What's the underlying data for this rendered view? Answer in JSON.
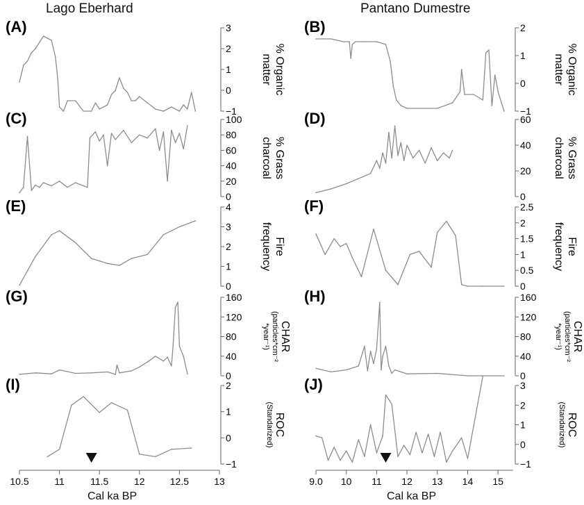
{
  "columns": [
    {
      "title": "Lago Eberhard",
      "xlabel": "Cal ka BP",
      "x_ticks": [
        "10.5",
        "11",
        "11.5",
        "12",
        "12.5",
        "13"
      ],
      "xlim": [
        10.5,
        13
      ]
    },
    {
      "title": "Pantano Dumestre",
      "xlabel": "Cal ka BP",
      "x_ticks": [
        "9.0",
        "10",
        "11",
        "12",
        "13",
        "14",
        "15"
      ],
      "xlim": [
        9.0,
        15.5
      ]
    }
  ],
  "chart_data": [
    {
      "id": "A",
      "type": "line",
      "panel_label": "(A)",
      "ylabel": [
        "% Organic",
        "matter"
      ],
      "yticks": [
        "3",
        "2",
        "1",
        "0",
        "−1"
      ],
      "ylim": [
        -1,
        3
      ],
      "x": [
        10.5,
        10.55,
        10.6,
        10.65,
        10.7,
        10.75,
        10.8,
        10.85,
        10.9,
        10.95,
        10.98,
        11.0,
        11.05,
        11.1,
        11.2,
        11.3,
        11.4,
        11.45,
        11.5,
        11.6,
        11.65,
        11.7,
        11.75,
        11.8,
        11.85,
        11.9,
        11.95,
        12.0,
        12.1,
        12.2,
        12.3,
        12.4,
        12.5,
        12.55,
        12.6,
        12.65,
        12.7
      ],
      "y": [
        0.4,
        1.2,
        1.4,
        1.8,
        2.0,
        2.3,
        2.6,
        2.5,
        2.4,
        1.6,
        0.5,
        -0.8,
        -1.0,
        -0.5,
        -0.5,
        -1.0,
        -1.0,
        -0.6,
        -0.9,
        -0.7,
        -0.2,
        0.0,
        0.6,
        0.1,
        -0.1,
        -0.5,
        -0.5,
        -0.3,
        -0.6,
        -0.9,
        -1.0,
        -0.8,
        -1.0,
        -0.7,
        -0.9,
        -0.1,
        -1.0
      ]
    },
    {
      "id": "B",
      "type": "line",
      "panel_label": "(B)",
      "ylabel": [
        "% Organic",
        "matter"
      ],
      "yticks": [
        "2",
        "1",
        "0",
        "−1"
      ],
      "ylim": [
        -1,
        2
      ],
      "x": [
        9.0,
        9.5,
        9.9,
        10.1,
        10.15,
        10.2,
        10.3,
        10.6,
        11.0,
        11.3,
        11.45,
        11.55,
        11.65,
        11.8,
        12.0,
        12.5,
        13.0,
        13.5,
        13.75,
        13.8,
        13.9,
        14.2,
        14.5,
        14.6,
        14.7,
        14.8,
        14.9,
        15.0,
        15.2
      ],
      "y": [
        1.6,
        1.6,
        1.5,
        1.5,
        0.9,
        1.4,
        1.5,
        1.5,
        1.5,
        1.4,
        0.8,
        -0.1,
        -0.6,
        -0.8,
        -0.9,
        -0.9,
        -0.9,
        -0.7,
        -0.3,
        0.5,
        -0.4,
        -0.4,
        -0.6,
        1.1,
        1.2,
        -0.8,
        0.3,
        -0.3,
        -1.0
      ]
    },
    {
      "id": "C",
      "type": "line",
      "panel_label": "(C)",
      "ylabel": [
        "% Grass",
        "charcoal"
      ],
      "yticks": [
        "100",
        "80",
        "60",
        "40",
        "20",
        "0"
      ],
      "ylim": [
        0,
        100
      ],
      "x": [
        10.5,
        10.55,
        10.6,
        10.65,
        10.7,
        10.75,
        10.8,
        10.9,
        11.0,
        11.1,
        11.2,
        11.3,
        11.35,
        11.38,
        11.45,
        11.5,
        11.55,
        11.6,
        11.65,
        11.7,
        11.8,
        11.9,
        12.0,
        12.1,
        12.2,
        12.25,
        12.3,
        12.35,
        12.4,
        12.45,
        12.5,
        12.55,
        12.6
      ],
      "y": [
        5,
        12,
        78,
        8,
        15,
        12,
        18,
        14,
        20,
        12,
        18,
        14,
        12,
        76,
        84,
        72,
        80,
        40,
        82,
        74,
        86,
        70,
        80,
        76,
        88,
        60,
        84,
        20,
        86,
        70,
        82,
        62,
        92
      ]
    },
    {
      "id": "D",
      "type": "line",
      "panel_label": "(D)",
      "ylabel": [
        "% Grass",
        "charcoal"
      ],
      "yticks": [
        "60",
        "40",
        "20",
        "0"
      ],
      "ylim": [
        0,
        60
      ],
      "x": [
        9.0,
        9.5,
        10.0,
        10.5,
        10.8,
        11.0,
        11.1,
        11.2,
        11.3,
        11.4,
        11.5,
        11.6,
        11.7,
        11.8,
        11.9,
        12.0,
        12.2,
        12.4,
        12.6,
        12.8,
        13.0,
        13.2,
        13.4,
        13.5
      ],
      "y": [
        3,
        6,
        10,
        15,
        18,
        28,
        22,
        34,
        26,
        50,
        30,
        55,
        32,
        42,
        28,
        40,
        30,
        36,
        26,
        38,
        28,
        34,
        30,
        36
      ]
    },
    {
      "id": "E",
      "type": "line",
      "panel_label": "(E)",
      "ylabel": [
        "Fire",
        "frequency"
      ],
      "yticks": [
        "4",
        "3",
        "2",
        "1",
        "0"
      ],
      "ylim": [
        0,
        4
      ],
      "x": [
        10.5,
        10.7,
        10.9,
        11.0,
        11.2,
        11.4,
        11.6,
        11.75,
        11.9,
        12.1,
        12.3,
        12.5,
        12.7
      ],
      "y": [
        0.05,
        1.5,
        2.6,
        2.8,
        2.2,
        1.4,
        1.15,
        1.05,
        1.4,
        1.6,
        2.6,
        3.0,
        3.3
      ]
    },
    {
      "id": "F",
      "type": "line",
      "panel_label": "(F)",
      "ylabel": [
        "Fire",
        "frequency"
      ],
      "yticks": [
        "2.5",
        "2",
        "1.5",
        "1",
        "0.5",
        "0"
      ],
      "ylim": [
        0,
        2.5
      ],
      "x": [
        9.0,
        9.3,
        9.6,
        9.8,
        10.0,
        10.2,
        10.5,
        10.9,
        11.3,
        11.7,
        12.1,
        12.4,
        12.8,
        13.0,
        13.3,
        13.6,
        13.8,
        14.0,
        14.5,
        15.2
      ],
      "y": [
        1.65,
        1.0,
        1.5,
        1.25,
        1.35,
        0.9,
        0.3,
        1.8,
        0.5,
        0.05,
        1.0,
        1.1,
        0.6,
        1.7,
        2.05,
        1.6,
        0.05,
        0.0,
        0.0,
        0.0
      ]
    },
    {
      "id": "G",
      "type": "line",
      "panel_label": "(G)",
      "ylabel": [
        "CHAR",
        "(particles*cm⁻²",
        "*year⁻¹)"
      ],
      "yticks": [
        "160",
        "120",
        "80",
        "40",
        "0"
      ],
      "ylim": [
        0,
        160
      ],
      "x": [
        10.5,
        10.7,
        10.9,
        11.0,
        11.2,
        11.4,
        11.6,
        11.7,
        11.72,
        11.75,
        11.9,
        12.0,
        12.1,
        12.2,
        12.3,
        12.35,
        12.4,
        12.42,
        12.45,
        12.48,
        12.5,
        12.55,
        12.6
      ],
      "y": [
        3,
        6,
        4,
        12,
        5,
        6,
        8,
        3,
        22,
        6,
        10,
        18,
        28,
        40,
        30,
        38,
        20,
        60,
        140,
        150,
        60,
        40,
        4
      ]
    },
    {
      "id": "H",
      "type": "line",
      "panel_label": "(H)",
      "ylabel": [
        "CHAR",
        "(particles*cm⁻²",
        "*year⁻¹)"
      ],
      "yticks": [
        "160",
        "120",
        "80",
        "40",
        "0"
      ],
      "ylim": [
        0,
        160
      ],
      "x": [
        9.0,
        9.5,
        10.0,
        10.4,
        10.6,
        10.7,
        10.8,
        10.9,
        11.0,
        11.1,
        11.15,
        11.2,
        11.3,
        11.4,
        11.5,
        11.6,
        12.0,
        13.0,
        13.6,
        14.0,
        15.2
      ],
      "y": [
        15,
        8,
        12,
        20,
        60,
        10,
        50,
        25,
        55,
        150,
        12,
        40,
        60,
        20,
        5,
        12,
        4,
        5,
        2,
        0,
        0
      ]
    },
    {
      "id": "I",
      "type": "line",
      "panel_label": "(I)",
      "ylabel": [
        "ROC",
        "(Standarized)"
      ],
      "yticks": [
        "2",
        "1",
        "0",
        "−1"
      ],
      "ylim": [
        -1.2,
        2
      ],
      "x": [
        10.85,
        11.0,
        11.15,
        11.3,
        11.5,
        11.65,
        11.85,
        12.0,
        12.2,
        12.4,
        12.65
      ],
      "y": [
        -0.9,
        -0.6,
        1.2,
        1.55,
        0.9,
        1.3,
        1.0,
        -0.8,
        -0.9,
        -0.6,
        -0.55
      ],
      "marker_x": 11.4
    },
    {
      "id": "J",
      "type": "line",
      "panel_label": "(J)",
      "ylabel": [
        "ROC",
        "(Standarized)"
      ],
      "yticks": [
        "3",
        "2",
        "1",
        "0",
        "−1"
      ],
      "ylim": [
        -1.2,
        3
      ],
      "x": [
        9.0,
        9.2,
        9.4,
        9.6,
        9.8,
        10.0,
        10.2,
        10.4,
        10.6,
        10.8,
        11.0,
        11.2,
        11.3,
        11.5,
        11.7,
        11.9,
        12.1,
        12.3,
        12.5,
        12.7,
        12.9,
        13.1,
        13.3,
        13.5,
        13.8,
        14.0,
        14.5
      ],
      "y": [
        0.3,
        0.2,
        -1.0,
        -0.3,
        -1.0,
        -0.5,
        -1.1,
        0.1,
        -0.8,
        0.9,
        -0.6,
        0.3,
        2.5,
        2.0,
        -0.8,
        -0.2,
        -0.7,
        0.5,
        -0.6,
        0.4,
        -0.8,
        0.5,
        -1.1,
        -0.5,
        0.2,
        -0.9,
        3.5
      ],
      "marker_x": 11.3
    }
  ]
}
